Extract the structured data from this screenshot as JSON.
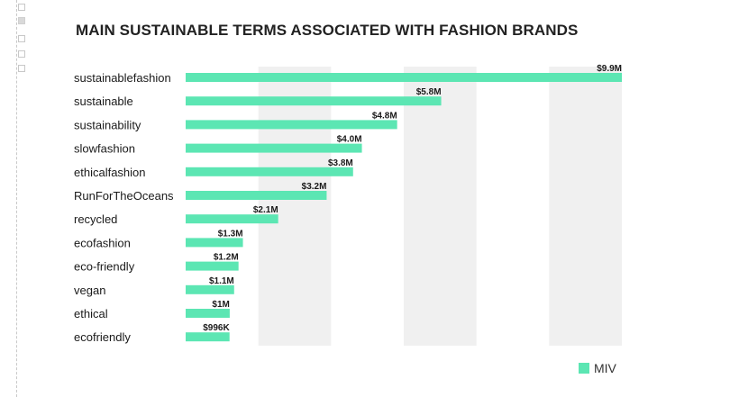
{
  "chart_data": {
    "type": "bar",
    "orientation": "horizontal",
    "title": "MAIN SUSTAINABLE TERMS ASSOCIATED WITH FASHION BRANDS",
    "xlabel": "",
    "ylabel": "",
    "categories": [
      "sustainablefashion",
      "sustainable",
      "sustainability",
      "slowfashion",
      "ethicalfashion",
      "RunForTheOceans",
      "recycled",
      "ecofashion",
      "eco-friendly",
      "vegan",
      "ethical",
      "ecofriendly"
    ],
    "series": [
      {
        "name": "MIV",
        "color": "#5ce6b3",
        "values": [
          9.9,
          5.8,
          4.8,
          4.0,
          3.8,
          3.2,
          2.1,
          1.3,
          1.2,
          1.1,
          1.0,
          0.996
        ],
        "labels": [
          "$9.9M",
          "$5.8M",
          "$4.8M",
          "$4.0M",
          "$3.8M",
          "$3.2M",
          "$2.1M",
          "$1.3M",
          "$1.2M",
          "$1.1M",
          "$1M",
          "$996K"
        ]
      }
    ],
    "xlim": [
      0,
      9.9
    ],
    "grid": "alternating vertical bands",
    "legend_position": "bottom-right",
    "band_color": "#f0f0f0",
    "text_color": "#1a1a1a"
  }
}
